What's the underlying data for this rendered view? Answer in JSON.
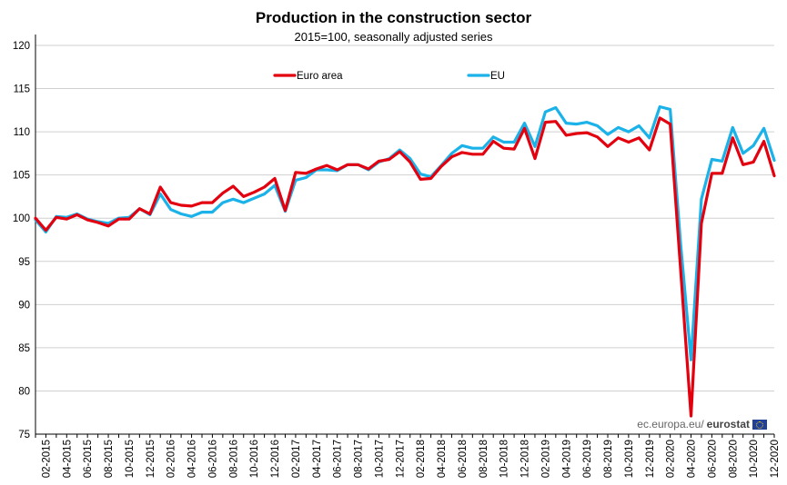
{
  "chart_data": {
    "type": "line",
    "title": "Production in the construction sector",
    "subtitle": "2015=100, seasonally adjusted series",
    "ylim": [
      75,
      120
    ],
    "yticks": [
      75,
      80,
      85,
      90,
      95,
      100,
      105,
      110,
      115,
      120
    ],
    "grid": "horizontal",
    "legend_placement": "top",
    "x": [
      "01-2015",
      "02-2015",
      "03-2015",
      "04-2015",
      "05-2015",
      "06-2015",
      "07-2015",
      "08-2015",
      "09-2015",
      "10-2015",
      "11-2015",
      "12-2015",
      "01-2016",
      "02-2016",
      "03-2016",
      "04-2016",
      "05-2016",
      "06-2016",
      "07-2016",
      "08-2016",
      "09-2016",
      "10-2016",
      "11-2016",
      "12-2016",
      "01-2017",
      "02-2017",
      "03-2017",
      "04-2017",
      "05-2017",
      "06-2017",
      "07-2017",
      "08-2017",
      "09-2017",
      "10-2017",
      "11-2017",
      "12-2017",
      "01-2018",
      "02-2018",
      "03-2018",
      "04-2018",
      "05-2018",
      "06-2018",
      "07-2018",
      "08-2018",
      "09-2018",
      "10-2018",
      "11-2018",
      "12-2018",
      "01-2019",
      "02-2019",
      "03-2019",
      "04-2019",
      "05-2019",
      "06-2019",
      "07-2019",
      "08-2019",
      "09-2019",
      "10-2019",
      "11-2019",
      "12-2019",
      "01-2020",
      "02-2020",
      "03-2020",
      "04-2020",
      "05-2020",
      "06-2020",
      "07-2020",
      "08-2020",
      "09-2020",
      "10-2020",
      "11-2020",
      "12-2020"
    ],
    "xtick_labels": [
      "02-2015",
      "04-2015",
      "06-2015",
      "08-2015",
      "10-2015",
      "12-2015",
      "02-2016",
      "04-2016",
      "06-2016",
      "08-2016",
      "10-2016",
      "12-2016",
      "02-2017",
      "04-2017",
      "06-2017",
      "08-2017",
      "10-2017",
      "12-2017",
      "02-2018",
      "04-2018",
      "06-2018",
      "08-2018",
      "10-2018",
      "12-2018",
      "02-2019",
      "04-2019",
      "06-2019",
      "08-2019",
      "10-2019",
      "12-2019",
      "02-2020",
      "04-2020",
      "06-2020",
      "08-2020",
      "10-2020",
      "12-2020"
    ],
    "series": [
      {
        "name": "Euro area",
        "color": "#e3000f",
        "values": [
          100.0,
          98.6,
          100.1,
          99.9,
          100.4,
          99.8,
          99.5,
          99.1,
          99.9,
          99.9,
          101.1,
          100.5,
          103.6,
          101.8,
          101.5,
          101.4,
          101.8,
          101.8,
          102.9,
          103.7,
          102.5,
          103.0,
          103.6,
          104.6,
          100.9,
          105.3,
          105.2,
          105.7,
          106.1,
          105.6,
          106.2,
          106.2,
          105.7,
          106.6,
          106.8,
          107.7,
          106.5,
          104.5,
          104.6,
          106.0,
          107.1,
          107.6,
          107.4,
          107.4,
          108.9,
          108.1,
          108.0,
          110.4,
          106.9,
          111.1,
          111.2,
          109.6,
          109.8,
          109.9,
          109.4,
          108.3,
          109.3,
          108.8,
          109.3,
          107.9,
          111.6,
          110.9,
          94.0,
          77.1,
          99.4,
          105.2,
          105.2,
          109.3,
          106.2,
          106.5,
          108.9,
          104.9
        ]
      },
      {
        "name": "EU",
        "color": "#1ab2e8",
        "values": [
          99.8,
          98.4,
          100.2,
          100.1,
          100.5,
          99.9,
          99.6,
          99.4,
          100.0,
          100.1,
          101.1,
          100.4,
          102.8,
          101.0,
          100.5,
          100.2,
          100.7,
          100.7,
          101.8,
          102.2,
          101.8,
          102.3,
          102.8,
          103.8,
          100.8,
          104.4,
          104.7,
          105.6,
          105.6,
          105.5,
          106.2,
          106.2,
          105.6,
          106.5,
          106.9,
          107.9,
          106.9,
          105.1,
          104.8,
          106.1,
          107.5,
          108.4,
          108.1,
          108.1,
          109.4,
          108.8,
          108.8,
          111.0,
          108.3,
          112.3,
          112.8,
          111.0,
          110.9,
          111.1,
          110.7,
          109.7,
          110.5,
          110.0,
          110.7,
          109.3,
          112.9,
          112.6,
          97.0,
          83.6,
          102.2,
          106.8,
          106.6,
          110.5,
          107.5,
          108.4,
          110.4,
          106.7
        ]
      }
    ]
  },
  "source": {
    "site": "ec.europa.eu/",
    "brand": "eurostat",
    "flag_icon": "eu-flag-icon"
  }
}
